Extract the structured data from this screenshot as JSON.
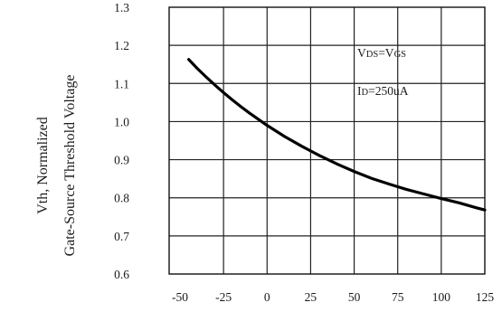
{
  "chart_data": {
    "type": "line",
    "title": "",
    "xlabel": "",
    "ylabel_line1": "Vth, Normalized",
    "ylabel_line2": "Gate-Source Threshold Voltage",
    "xlim": [
      -50,
      125
    ],
    "ylim": [
      0.6,
      1.3
    ],
    "x_ticks": [
      "-50",
      "-25",
      "0",
      "25",
      "50",
      "75",
      "100",
      "125"
    ],
    "y_ticks": [
      "1.3",
      "1.2",
      "1.1",
      "1.0",
      "0.9",
      "0.8",
      "0.7",
      "0.6"
    ],
    "grid": true,
    "annotations": {
      "vds_main": "V",
      "vds_sub": "DS",
      "vds_eq": "=V",
      "vgs_sub": "GS",
      "id_main": "I",
      "id_sub": "D",
      "id_rest": "=250uA"
    },
    "series": [
      {
        "x": [
          -45,
          -40,
          -35,
          -30,
          -25,
          -20,
          -15,
          -10,
          -5,
          0,
          10,
          20,
          25,
          30,
          40,
          50,
          60,
          70,
          75,
          80,
          90,
          100,
          110,
          120,
          125
        ],
        "y": [
          1.163,
          1.139,
          1.117,
          1.096,
          1.076,
          1.057,
          1.039,
          1.022,
          1.006,
          0.99,
          0.961,
          0.935,
          0.923,
          0.911,
          0.889,
          0.869,
          0.851,
          0.836,
          0.829,
          0.822,
          0.81,
          0.798,
          0.787,
          0.774,
          0.768
        ]
      }
    ]
  }
}
